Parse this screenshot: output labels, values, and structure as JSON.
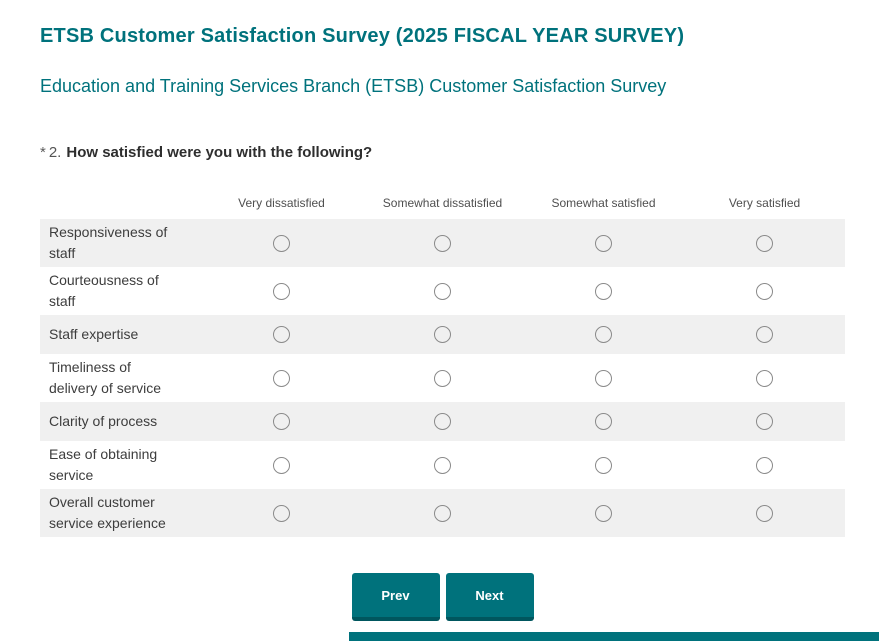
{
  "header": {
    "title": "ETSB Customer Satisfaction Survey (2025 FISCAL YEAR SURVEY)",
    "subtitle": "Education and Training Services Branch (ETSB) Customer Satisfaction Survey"
  },
  "question": {
    "required_marker": "*",
    "number": "2.",
    "text": "How satisfied were you with the following?"
  },
  "matrix": {
    "columns": [
      "Very dissatisfied",
      "Somewhat dissatisfied",
      "Somewhat satisfied",
      "Very satisfied"
    ],
    "rows": [
      "Responsiveness of staff",
      "Courteousness of staff",
      "Staff expertise",
      "Timeliness of delivery of service",
      "Clarity of process",
      "Ease of obtaining service",
      "Overall customer service experience"
    ]
  },
  "buttons": {
    "prev": "Prev",
    "next": "Next"
  },
  "colors": {
    "accent": "#00727C",
    "accent_dark": "#00565E",
    "alt_row_bg": "#F0F0F0",
    "radio_border": "#8A8A8A"
  }
}
